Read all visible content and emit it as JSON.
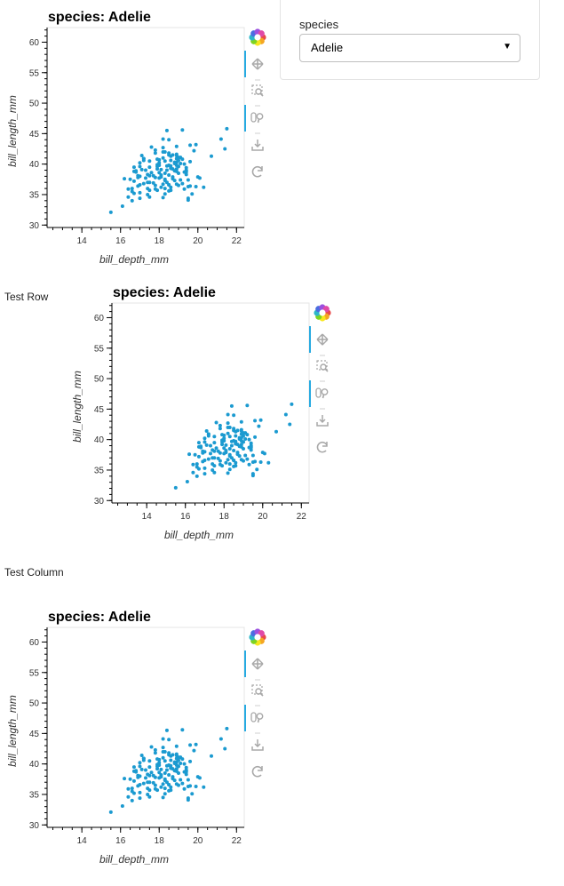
{
  "widget": {
    "title": "species",
    "selected": "Adelie",
    "arrow_icon": "dropdown-arrow-icon"
  },
  "labels": {
    "row": "Test Row",
    "column": "Test Column"
  },
  "colors": {
    "point": "#1b9ad0",
    "toolbar_active": "#26aae1",
    "toolbar_icon": "#a8a8a8"
  },
  "toolbar": {
    "icons": [
      "bokeh-logo-icon",
      "pan-icon",
      "box-zoom-icon",
      "wheel-zoom-icon",
      "save-icon",
      "reset-icon"
    ]
  },
  "chart_data": [
    {
      "type": "scatter",
      "title": "species: Adelie",
      "xlabel": "bill_depth_mm",
      "ylabel": "bill_length_mm",
      "xlim": [
        12.2,
        22.4
      ],
      "ylim": [
        29.6,
        62.4
      ],
      "xticks": [
        14,
        16,
        18,
        20,
        22
      ],
      "yticks": [
        30,
        35,
        40,
        45,
        50,
        55,
        60
      ],
      "x": [
        15.5,
        16.1,
        16.6,
        17.0,
        16.4,
        18.2,
        16.7,
        19.5,
        16.6,
        16.4,
        17.9,
        18.3,
        18.6,
        19.0,
        16.9,
        18.5,
        18.9,
        17.4,
        18.8,
        21.5,
        19.2,
        18.4,
        21.2,
        19.9,
        21.4,
        18.2,
        18.9,
        18.2,
        17.8,
        18.5,
        20.7,
        19.1,
        18.9,
        19.2,
        18.6,
        17.0,
        18.9,
        18.0,
        19.0,
        18.6,
        17.5,
        17.9,
        19.4,
        16.8,
        18.9,
        17.6,
        18.3,
        18.1,
        16.9,
        20.0,
        17.8,
        17.3,
        18.7,
        16.5,
        18.3,
        17.4,
        19.2,
        17.7,
        18.5,
        19.6,
        20.3,
        19.3,
        18.5,
        17.0,
        18.3,
        17.5,
        19.5,
        16.7,
        18.7,
        19.4,
        17.1,
        18.6,
        16.7,
        18.4,
        17.9,
        19.1,
        18.8,
        18.3,
        18.0,
        17.2,
        19.0,
        17.1,
        18.9,
        18.5,
        19.8,
        17.8,
        17.6,
        19.6,
        18.2,
        17.4,
        18.6,
        19.5,
        17.2,
        19.5,
        18.0,
        17.5,
        19.4,
        18.0,
        16.7,
        18.4,
        18.7,
        17.9,
        18.0,
        19.0,
        16.2,
        18.5,
        18.8,
        19.4,
        18.9,
        17.5,
        18.2,
        17.0,
        18.5,
        19.0,
        17.8,
        19.3,
        18.9,
        16.6,
        17.7,
        18.1,
        17.3,
        17.9,
        18.3,
        18.8,
        16.8,
        19.9,
        18.4,
        17.5,
        18.1,
        17.2,
        18.6,
        19.3,
        17.0,
        18.1,
        20.1,
        19.1,
        17.8,
        18.2,
        17.5,
        18.7,
        19.7,
        18.6,
        17.4,
        18.3,
        17.0,
        19.4,
        18.9,
        17.2,
        16.9,
        19.6,
        18.5
      ],
      "y": [
        32.1,
        33.1,
        34.0,
        34.4,
        34.6,
        34.5,
        35.2,
        34.4,
        35.5,
        35.9,
        35.7,
        36.0,
        36.2,
        36.5,
        36.4,
        36.6,
        36.7,
        36.0,
        37.3,
        45.8,
        45.6,
        45.5,
        44.1,
        43.2,
        42.5,
        42.7,
        42.9,
        42.0,
        41.8,
        41.5,
        41.3,
        41.1,
        40.9,
        40.8,
        40.6,
        40.2,
        40.3,
        39.8,
        39.6,
        39.7,
        39.5,
        39.2,
        39.0,
        38.9,
        38.8,
        38.6,
        38.5,
        38.2,
        38.1,
        37.9,
        37.8,
        37.7,
        37.6,
        37.5,
        37.3,
        37.0,
        36.8,
        36.9,
        36.6,
        36.4,
        36.2,
        35.9,
        35.6,
        35.3,
        35.1,
        34.6,
        34.1,
        37.2,
        37.9,
        38.7,
        39.1,
        39.3,
        39.5,
        39.7,
        39.9,
        40.1,
        40.3,
        40.5,
        40.7,
        40.9,
        41.1,
        41.4,
        41.6,
        41.8,
        42.2,
        42.3,
        42.8,
        43.1,
        44.1,
        35.0,
        35.7,
        36.3,
        36.8,
        37.4,
        37.7,
        38.1,
        38.3,
        38.6,
        38.8,
        39.0,
        39.2,
        39.6,
        40.2,
        40.6,
        37.6,
        38.2,
        38.9,
        39.4,
        39.8,
        40.5,
        41.0,
        39.6,
        39.8,
        38.5,
        36.5,
        38.7,
        41.4,
        36.0,
        38.1,
        36.2,
        39.0,
        40.8,
        42.0,
        40.1,
        38.7,
        36.3,
        37.0,
        35.7,
        37.9,
        40.6,
        41.3,
        40.0,
        38.0,
        39.1,
        37.7,
        37.4,
        35.9,
        36.7,
        37.0,
        41.5,
        35.1,
        39.4,
        38.3,
        37.5,
        36.6,
        38.9,
        39.2,
        40.9,
        37.8,
        40.4,
        44.0
      ]
    }
  ]
}
